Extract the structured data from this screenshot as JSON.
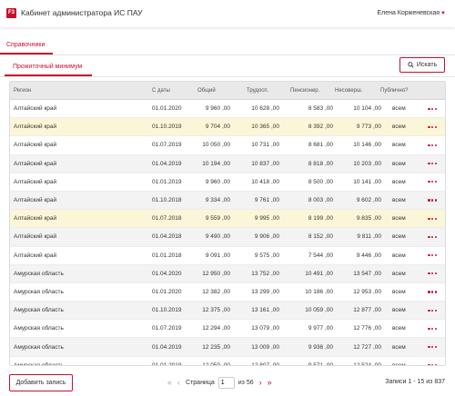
{
  "header": {
    "logo_text": "F3",
    "title": "Кабинет администратора ИС ПАУ",
    "user": "Елена Корженевская"
  },
  "nav": {
    "main_tab": "Справочники",
    "sub_tab": "Прожиточный минимум"
  },
  "search_button": "Искать",
  "table": {
    "columns": {
      "region": "Регион",
      "date": "С даты",
      "total": "Общий",
      "working": "Трудосп.",
      "pensioner": "Пенсионер.",
      "minor": "Несоверш.",
      "public": "Публично?"
    },
    "rows": [
      {
        "region": "Алтайский край",
        "date": "01.01.2020",
        "total": "9 960 ,00",
        "working": "10 628 ,00",
        "pensioner": "8 583 ,00",
        "minor": "10 104 ,00",
        "public": "всем",
        "style": "plain"
      },
      {
        "region": "Алтайский край",
        "date": "01.10.2019",
        "total": "9 704 ,00",
        "working": "10 365 ,00",
        "pensioner": "8 392 ,00",
        "minor": "9 773 ,00",
        "public": "всем",
        "style": "hl"
      },
      {
        "region": "Алтайский край",
        "date": "01.07.2019",
        "total": "10 050 ,00",
        "working": "10 731 ,00",
        "pensioner": "8 681 ,00",
        "minor": "10 146 ,00",
        "public": "всем",
        "style": "plain"
      },
      {
        "region": "Алтайский край",
        "date": "01.04.2019",
        "total": "10 194 ,00",
        "working": "10 837 ,00",
        "pensioner": "8 818 ,00",
        "minor": "10 203 ,00",
        "public": "всем",
        "style": "alt"
      },
      {
        "region": "Алтайский край",
        "date": "01.01.2019",
        "total": "9 960 ,00",
        "working": "10 418 ,00",
        "pensioner": "8 500 ,00",
        "minor": "10 141 ,00",
        "public": "всем",
        "style": "plain"
      },
      {
        "region": "Алтайский край",
        "date": "01.10.2018",
        "total": "9 334 ,00",
        "working": "9 761 ,00",
        "pensioner": "8 003 ,00",
        "minor": "9 602 ,00",
        "public": "всем",
        "style": "alt"
      },
      {
        "region": "Алтайский край",
        "date": "01.07.2018",
        "total": "9 559 ,00",
        "working": "9 995 ,00",
        "pensioner": "8 199 ,00",
        "minor": "9 835 ,00",
        "public": "всем",
        "style": "hl"
      },
      {
        "region": "Алтайский край",
        "date": "01.04.2018",
        "total": "9 490 ,00",
        "working": "9 906 ,00",
        "pensioner": "8 152 ,00",
        "minor": "9 811 ,00",
        "public": "всем",
        "style": "alt"
      },
      {
        "region": "Алтайский край",
        "date": "01.01.2018",
        "total": "9 091 ,00",
        "working": "9 575 ,00",
        "pensioner": "7 544 ,00",
        "minor": "9 446 ,00",
        "public": "всем",
        "style": "plain"
      },
      {
        "region": "Амурская область",
        "date": "01.04.2020",
        "total": "12 950 ,00",
        "working": "13 752 ,00",
        "pensioner": "10 491 ,00",
        "minor": "13 547 ,00",
        "public": "всем",
        "style": "alt"
      },
      {
        "region": "Амурская область",
        "date": "01.01.2020",
        "total": "12 382 ,00",
        "working": "13 299 ,00",
        "pensioner": "10 186 ,00",
        "minor": "12 953 ,00",
        "public": "всем",
        "style": "plain"
      },
      {
        "region": "Амурская область",
        "date": "01.10.2019",
        "total": "12 375 ,00",
        "working": "13 161 ,00",
        "pensioner": "10 059 ,00",
        "minor": "12 877 ,00",
        "public": "всем",
        "style": "alt"
      },
      {
        "region": "Амурская область",
        "date": "01.07.2019",
        "total": "12 294 ,00",
        "working": "13 079 ,00",
        "pensioner": "9 977 ,00",
        "minor": "12 776 ,00",
        "public": "всем",
        "style": "plain"
      },
      {
        "region": "Амурская область",
        "date": "01.04.2019",
        "total": "12 235 ,00",
        "working": "13 009 ,00",
        "pensioner": "9 936 ,00",
        "minor": "12 727 ,00",
        "public": "всем",
        "style": "alt"
      },
      {
        "region": "Амурская область",
        "date": "01.01.2019",
        "total": "12 050 ,00",
        "working": "12 807 ,00",
        "pensioner": "9 571 ,00",
        "minor": "12 524 ,00",
        "public": "всем",
        "style": "plain"
      }
    ]
  },
  "add_button": "Добавить запись",
  "pagination": {
    "page_label": "Страница",
    "page_value": "1",
    "of_label": "из 56"
  },
  "records_text": "Записи 1 - 15 из 837",
  "colors": {
    "accent": "#c8102e",
    "highlight_row": "#fcf6d8",
    "alt_row": "#f3f3f3"
  },
  "icons": {
    "search": "magnifier-icon",
    "row_actions": "more-dots-icon",
    "user_menu": "caret-down-icon"
  }
}
